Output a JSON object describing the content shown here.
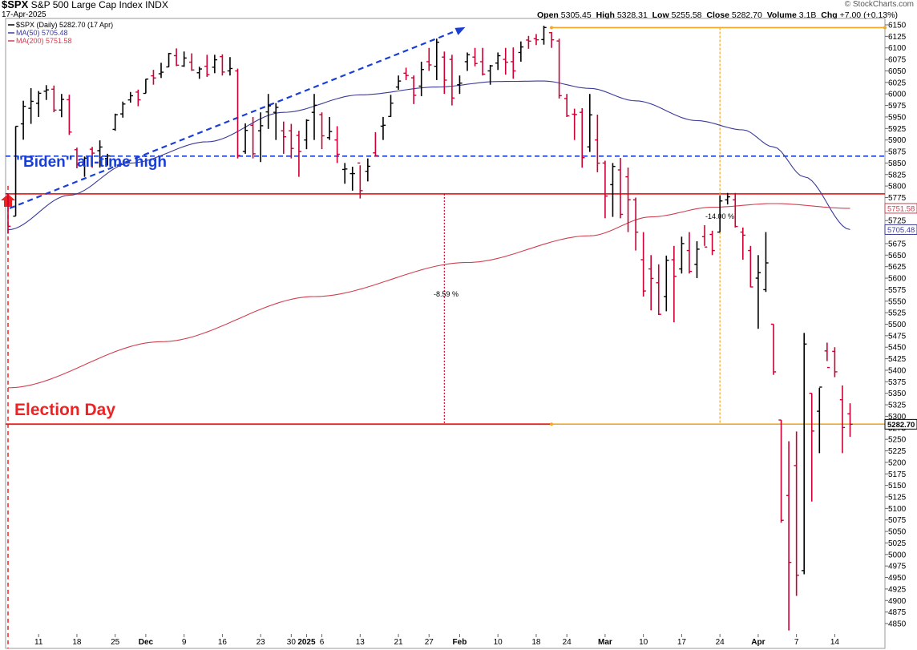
{
  "header": {
    "symbol": "$SPX",
    "name": "S&P 500 Large Cap Index",
    "exchange": "INDX",
    "date": "17-Apr-2025",
    "open_label": "Open",
    "open": "5305.45",
    "high_label": "High",
    "high": "5328.31",
    "low_label": "Low",
    "low": "5255.58",
    "close_label": "Close",
    "close": "5282.70",
    "volume_label": "Volume",
    "volume": "3.1B",
    "chg_label": "Chg",
    "chg": "+7.00 (+0.13%)",
    "logo": "© StockCharts.com"
  },
  "colors": {
    "up": "#000000",
    "down": "#cc0033",
    "ma50": "#3a3a9a",
    "ma200": "#d04050",
    "blue_line": "#1a3fd6",
    "red_line": "#ee2222",
    "orange": "#f5a623"
  },
  "chart_data": {
    "type": "ohlc",
    "title": "$SPX (Daily) 5282.70 (17 Apr)",
    "legend": [
      {
        "name": "$SPX (Daily) 5282.70 (17 Apr)"
      },
      {
        "name": "MA(50) 5705.48",
        "value": 5705.48
      },
      {
        "name": "MA(200) 5751.58",
        "value": 5751.58
      }
    ],
    "ylim": [
      4830,
      6165
    ],
    "y_ticks": [
      4850,
      4875,
      4900,
      4925,
      4950,
      4975,
      5000,
      5025,
      5050,
      5075,
      5100,
      5125,
      5150,
      5175,
      5200,
      5225,
      5250,
      5275,
      5300,
      5325,
      5350,
      5375,
      5400,
      5425,
      5450,
      5475,
      5500,
      5525,
      5550,
      5575,
      5600,
      5625,
      5650,
      5675,
      5700,
      5725,
      5750,
      5775,
      5800,
      5825,
      5850,
      5875,
      5900,
      5925,
      5950,
      5975,
      6000,
      6025,
      6050,
      6075,
      6100,
      6125,
      6150
    ],
    "x_ticks": [
      "11",
      "18",
      "25",
      "Dec",
      "9",
      "16",
      "23",
      "30",
      "2025",
      "6",
      "13",
      "21",
      "27",
      "Feb",
      "10",
      "18",
      "24",
      "Mar",
      "10",
      "17",
      "24",
      "Apr",
      "7",
      "14"
    ],
    "x_tick_index": [
      4,
      9,
      14,
      18,
      23,
      28,
      33,
      37,
      39,
      41,
      46,
      51,
      55,
      59,
      64,
      69,
      73,
      78,
      83,
      88,
      93,
      98,
      103,
      108
    ],
    "bars": [
      [
        5783.4,
        5783.4,
        5696.5,
        5712.7
      ],
      [
        5734.6,
        5929.7,
        5734.6,
        5929.7
      ],
      [
        5935.0,
        5985.2,
        5900.6,
        5973.1
      ],
      [
        5968.8,
        6012.5,
        5935.0,
        5983.9
      ],
      [
        5979.6,
        6006.3,
        5950.0,
        6001.4
      ],
      [
        6005.9,
        6019.0,
        5986.9,
        6008.8
      ],
      [
        6010.3,
        6018.2,
        5960.2,
        5964.9
      ],
      [
        5965.0,
        6000.0,
        5949.4,
        5988.1
      ],
      [
        5987.4,
        5998.3,
        5911.0,
        5917.1
      ],
      [
        5878.9,
        5883.3,
        5838.5,
        5846.4
      ],
      [
        5847.2,
        5864.2,
        5820.0,
        5860.6
      ],
      [
        5880.0,
        5885.0,
        5839.9,
        5871.4
      ],
      [
        5876.8,
        5899.1,
        5840.3,
        5884.7
      ],
      [
        5860.0,
        5870.0,
        5844.4,
        5865.3
      ],
      [
        5923.0,
        5957.2,
        5920.0,
        5954.9
      ],
      [
        5956.6,
        5983.4,
        5948.5,
        5978.1
      ],
      [
        5987.0,
        6004.2,
        5981.0,
        5996.0
      ],
      [
        6004.0,
        6009.4,
        5973.3,
        5987.2
      ],
      [
        6001.2,
        6032.6,
        6001.2,
        6032.2
      ],
      [
        6039.3,
        6052.3,
        6020.0,
        6034.7
      ],
      [
        6043.8,
        6067.6,
        6034.6,
        6047.2
      ],
      [
        6058.6,
        6089.2,
        6058.3,
        6087.7
      ],
      [
        6083.1,
        6098.9,
        6060.4,
        6062.4
      ],
      [
        6060.7,
        6092.1,
        6058.7,
        6078.0
      ],
      [
        6069.0,
        6088.1,
        6050.0,
        6052.0
      ],
      [
        6046.0,
        6059.0,
        6032.8,
        6054.2
      ],
      [
        6060.0,
        6085.0,
        6037.0,
        6041.9
      ],
      [
        6058.0,
        6085.0,
        6045.0,
        6074.1
      ],
      [
        6081.0,
        6086.0,
        6040.0,
        6047.5
      ],
      [
        6050.0,
        6080.0,
        6040.0,
        6055.2
      ],
      [
        6050.0,
        6055.0,
        5860.0,
        5866.4
      ],
      [
        5875.0,
        5936.0,
        5870.0,
        5920.9
      ],
      [
        5932.0,
        5950.0,
        5860.0,
        5870.0
      ],
      [
        5920.0,
        5960.0,
        5852.0,
        5930.9
      ],
      [
        5961.0,
        6000.0,
        5924.0,
        5974.0
      ],
      [
        5960.0,
        5980.0,
        5900.0,
        5970.8
      ],
      [
        5920.0,
        5940.0,
        5870.0,
        5906.9
      ],
      [
        5920.0,
        5935.0,
        5860.0,
        5881.6
      ],
      [
        5910.0,
        5920.0,
        5820.0,
        5875.0
      ],
      [
        5900.0,
        5945.0,
        5880.0,
        5942.5
      ],
      [
        5960.0,
        6000.0,
        5900.0,
        5975.4
      ],
      [
        5955.0,
        5960.0,
        5880.0,
        5909.0
      ],
      [
        5905.0,
        5950.0,
        5900.0,
        5918.3
      ],
      [
        5900.0,
        5930.0,
        5850.0,
        5869.0
      ],
      [
        5836.0,
        5850.0,
        5805.0,
        5837.0
      ],
      [
        5827.0,
        5842.0,
        5790.0,
        5827.1
      ],
      [
        5850.0,
        5845.0,
        5773.0,
        5790.0
      ],
      [
        5832.0,
        5860.0,
        5810.0,
        5842.9
      ],
      [
        5872.0,
        5917.0,
        5866.0,
        5866.0
      ],
      [
        5930.0,
        5950.0,
        5900.0,
        5932.0
      ],
      [
        5951.0,
        5998.0,
        5950.0,
        5980.0
      ],
      [
        6015.0,
        6040.0,
        6009.0,
        6028.0
      ],
      [
        6045.0,
        6057.0,
        6030.0,
        6040.0
      ],
      [
        6035.0,
        6040.0,
        5978.0,
        5997.0
      ],
      [
        6017.0,
        6070.0,
        5995.0,
        6053.0
      ],
      [
        6070.0,
        6100.0,
        6050.0,
        6063.0
      ],
      [
        6060.0,
        6120.0,
        6030.0,
        6112.3
      ],
      [
        6080.0,
        6092.0,
        6000.0,
        6030.0
      ],
      [
        6075.0,
        6085.0,
        5975.0,
        5991.2
      ],
      [
        6020.0,
        6040.0,
        6000.0,
        6023.4
      ],
      [
        6070.0,
        6090.0,
        6050.0,
        6085.0
      ],
      [
        6080.0,
        6100.0,
        6060.0,
        6066.0
      ],
      [
        6070.0,
        6100.0,
        6040.0,
        6043.0
      ],
      [
        6050.0,
        6063.0,
        6020.0,
        6061.0
      ],
      [
        6067.0,
        6090.0,
        6052.0,
        6083.0
      ],
      [
        6075.0,
        6100.0,
        6042.0,
        6069.0
      ],
      [
        6070.0,
        6101.0,
        6033.0,
        6050.0
      ],
      [
        6090.0,
        6114.0,
        6070.0,
        6102.0
      ],
      [
        6117.0,
        6126.0,
        6098.0,
        6114.6
      ],
      [
        6120.0,
        6130.0,
        6106.0,
        6117.5
      ],
      [
        6118.0,
        6148.0,
        6107.0,
        6144.2
      ],
      [
        6133.0,
        6134.5,
        6100.0,
        6117.5
      ],
      [
        6115.0,
        6120.0,
        5990.0,
        5996.2
      ],
      [
        5990.0,
        6000.0,
        5950.0,
        5952.4
      ],
      [
        5956.0,
        5968.0,
        5900.0,
        5955.2
      ],
      [
        5960.0,
        5969.0,
        5840.0,
        5861.6
      ],
      [
        5885.0,
        6000.0,
        5874.0,
        5954.5
      ],
      [
        5900.0,
        5955.0,
        5830.0,
        5849.7
      ],
      [
        5850.0,
        5855.0,
        5730.0,
        5778.2
      ],
      [
        5803.0,
        5850.0,
        5733.0,
        5842.6
      ],
      [
        5835.0,
        5861.0,
        5730.0,
        5738.5
      ],
      [
        5820.0,
        5840.0,
        5700.0,
        5770.2
      ],
      [
        5770.0,
        5775.0,
        5660.0,
        5699.9
      ],
      [
        5640.0,
        5700.0,
        5560.0,
        5572.1
      ],
      [
        5620.0,
        5650.0,
        5530.0,
        5599.3
      ],
      [
        5590.0,
        5630.0,
        5520.0,
        5521.5
      ],
      [
        5560.0,
        5649.0,
        5528.0,
        5638.9
      ],
      [
        5640.0,
        5670.0,
        5504.0,
        5604.0
      ],
      [
        5620.0,
        5690.0,
        5610.0,
        5675.1
      ],
      [
        5660.0,
        5700.0,
        5610.0,
        5614.7
      ],
      [
        5630.0,
        5680.0,
        5600.0,
        5662.9
      ],
      [
        5690.0,
        5715.0,
        5670.0,
        5667.6
      ],
      [
        5695.0,
        5703.0,
        5650.0,
        5660.0
      ],
      [
        5700.0,
        5780.0,
        5700.0,
        5767.6
      ],
      [
        5770.0,
        5785.0,
        5760.0,
        5776.6
      ],
      [
        5770.0,
        5785.0,
        5710.0,
        5712.2
      ],
      [
        5700.0,
        5710.0,
        5640.0,
        5693.3
      ],
      [
        5660.0,
        5670.0,
        5580.0,
        5580.9
      ],
      [
        5600.0,
        5650.0,
        5490.0,
        5611.9
      ],
      [
        5575.0,
        5700.0,
        5570.0,
        5633.1
      ],
      [
        5500.0,
        5500.0,
        5390.0,
        5396.5
      ],
      [
        5292.0,
        5292.0,
        5069.0,
        5074.1
      ],
      [
        5128.0,
        5246.0,
        4835.0,
        4982.8
      ],
      [
        5193.0,
        5267.0,
        4910.0,
        4955.0
      ],
      [
        4965.0,
        5481.0,
        4957.0,
        5456.9
      ],
      [
        5350.0,
        5350.0,
        5115.0,
        5268.0
      ],
      [
        5311.0,
        5362.0,
        5220.0,
        5363.4
      ],
      [
        5442.0,
        5460.0,
        5420.0,
        5405.97
      ],
      [
        5441.0,
        5450.0,
        5385.0,
        5396.6
      ],
      [
        5336.0,
        5367.0,
        5220.0,
        5275.7
      ],
      [
        5305.45,
        5328.31,
        5255.58,
        5282.7
      ]
    ],
    "ma50_anchor_points": [
      [
        0,
        5705
      ],
      [
        8,
        5780
      ],
      [
        16,
        5850
      ],
      [
        26,
        5896
      ],
      [
        36,
        5960
      ],
      [
        46,
        5998
      ],
      [
        56,
        6015
      ],
      [
        64,
        6027
      ],
      [
        70,
        6028
      ],
      [
        76,
        6012
      ],
      [
        82,
        5985
      ],
      [
        90,
        5942
      ],
      [
        96,
        5922
      ],
      [
        100,
        5885
      ],
      [
        104,
        5820
      ],
      [
        110,
        5705.48
      ]
    ],
    "ma200_anchor_points": [
      [
        0,
        5362
      ],
      [
        20,
        5462
      ],
      [
        40,
        5560
      ],
      [
        60,
        5634
      ],
      [
        76,
        5692
      ],
      [
        84,
        5733
      ],
      [
        92,
        5754
      ],
      [
        100,
        5762
      ],
      [
        110,
        5751.58
      ]
    ],
    "annotations": {
      "biden_label": "\"Biden\" all-time high",
      "election_label": "Election Day",
      "pct1": "-8.59 %",
      "pct2": "-14.00 %"
    },
    "levels": {
      "biden_high": 5865,
      "red_resistance": 5783,
      "election_day": 5783,
      "peak_orange": 6144,
      "current_orange": 5283,
      "pct1_bottom_val": 5283
    },
    "price_labels": {
      "ma200": "5751.58",
      "ma50": "5705.48",
      "close": "5282.70"
    }
  }
}
